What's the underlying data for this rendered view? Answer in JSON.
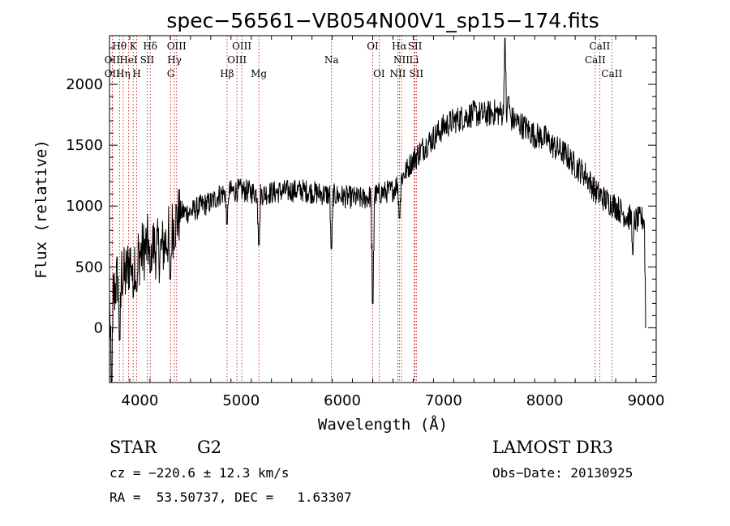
{
  "chart_data": {
    "type": "line",
    "title": "spec−56561−VB054N00V1_sp15−174.fits",
    "xlabel": "Wavelength (Å)",
    "ylabel": "Flux (relative)",
    "xlim": [
      3700,
      9100
    ],
    "ylim": [
      -450,
      2400
    ],
    "xticks": [
      4000,
      5000,
      6000,
      7000,
      8000,
      9000
    ],
    "yticks": [
      0,
      500,
      1000,
      1500,
      2000
    ],
    "grid": false,
    "line_color": "#000000",
    "marker_color": "#c00000",
    "spectrum_anchors": [
      {
        "x": 3700,
        "y": 200
      },
      {
        "x": 3750,
        "y": 300
      },
      {
        "x": 3800,
        "y": 500
      },
      {
        "x": 3850,
        "y": 400
      },
      {
        "x": 3900,
        "y": 550
      },
      {
        "x": 4000,
        "y": 600
      },
      {
        "x": 4100,
        "y": 700
      },
      {
        "x": 4200,
        "y": 620
      },
      {
        "x": 4300,
        "y": 780
      },
      {
        "x": 4400,
        "y": 950
      },
      {
        "x": 4500,
        "y": 950
      },
      {
        "x": 4600,
        "y": 1000
      },
      {
        "x": 4700,
        "y": 1030
      },
      {
        "x": 4800,
        "y": 1100
      },
      {
        "x": 4900,
        "y": 1120
      },
      {
        "x": 5000,
        "y": 1130
      },
      {
        "x": 5200,
        "y": 1100
      },
      {
        "x": 5400,
        "y": 1120
      },
      {
        "x": 5600,
        "y": 1130
      },
      {
        "x": 5800,
        "y": 1100
      },
      {
        "x": 6000,
        "y": 1080
      },
      {
        "x": 6200,
        "y": 1060
      },
      {
        "x": 6400,
        "y": 1110
      },
      {
        "x": 6500,
        "y": 1130
      },
      {
        "x": 6600,
        "y": 1250
      },
      {
        "x": 6700,
        "y": 1380
      },
      {
        "x": 6800,
        "y": 1480
      },
      {
        "x": 6900,
        "y": 1560
      },
      {
        "x": 7000,
        "y": 1650
      },
      {
        "x": 7100,
        "y": 1700
      },
      {
        "x": 7200,
        "y": 1730
      },
      {
        "x": 7300,
        "y": 1760
      },
      {
        "x": 7400,
        "y": 1750
      },
      {
        "x": 7500,
        "y": 1770
      },
      {
        "x": 7600,
        "y": 1760
      },
      {
        "x": 7700,
        "y": 1700
      },
      {
        "x": 7800,
        "y": 1650
      },
      {
        "x": 7900,
        "y": 1580
      },
      {
        "x": 8000,
        "y": 1560
      },
      {
        "x": 8100,
        "y": 1480
      },
      {
        "x": 8200,
        "y": 1430
      },
      {
        "x": 8300,
        "y": 1330
      },
      {
        "x": 8400,
        "y": 1260
      },
      {
        "x": 8500,
        "y": 1120
      },
      {
        "x": 8600,
        "y": 1050
      },
      {
        "x": 8700,
        "y": 1000
      },
      {
        "x": 8800,
        "y": 920
      },
      {
        "x": 8900,
        "y": 880
      },
      {
        "x": 9000,
        "y": 900
      }
    ],
    "spectrum_features": [
      {
        "x": 3720,
        "y": -450
      },
      {
        "x": 3800,
        "y": -100
      },
      {
        "x": 3934,
        "y": 250
      },
      {
        "x": 3969,
        "y": 300
      },
      {
        "x": 4102,
        "y": 450
      },
      {
        "x": 4300,
        "y": 400
      },
      {
        "x": 4861,
        "y": 850
      },
      {
        "x": 5175,
        "y": 680
      },
      {
        "x": 5893,
        "y": 650
      },
      {
        "x": 6300,
        "y": 200
      },
      {
        "x": 6563,
        "y": 900
      },
      {
        "x": 7606,
        "y": 2380
      },
      {
        "x": 7640,
        "y": 1900
      },
      {
        "x": 8870,
        "y": 600
      },
      {
        "x": 9000,
        "y": 0
      }
    ],
    "noise_amplitude": {
      "blue": 260,
      "green": 95,
      "red": 110
    },
    "lines": [
      {
        "label": "Hθ",
        "x": 3798,
        "row": 1
      },
      {
        "label": "OII",
        "x": 3727,
        "row": 2
      },
      {
        "label": "OII",
        "x": 3727,
        "row": 3
      },
      {
        "label": "Hη",
        "x": 3835,
        "row": 3
      },
      {
        "label": "HeI",
        "x": 3889,
        "row": 2
      },
      {
        "label": "K",
        "x": 3934,
        "row": 1
      },
      {
        "label": "H",
        "x": 3969,
        "row": 3
      },
      {
        "label": "SII",
        "x": 4072,
        "row": 2
      },
      {
        "label": "Hδ",
        "x": 4102,
        "row": 1
      },
      {
        "label": "OIII",
        "x": 4363,
        "row": 1
      },
      {
        "label": "Hγ",
        "x": 4341,
        "row": 2
      },
      {
        "label": "G",
        "x": 4305,
        "row": 3
      },
      {
        "label": "Hβ",
        "x": 4861,
        "row": 3
      },
      {
        "label": "OIII",
        "x": 5007,
        "row": 1
      },
      {
        "label": "OIII",
        "x": 4959,
        "row": 2
      },
      {
        "label": "Mg",
        "x": 5175,
        "row": 3
      },
      {
        "label": "Na",
        "x": 5893,
        "row": 2
      },
      {
        "label": "OI",
        "x": 6300,
        "row": 1
      },
      {
        "label": "OI",
        "x": 6363,
        "row": 3
      },
      {
        "label": "Hα",
        "x": 6563,
        "row": 1
      },
      {
        "label": "NII",
        "x": 6584,
        "row": 2
      },
      {
        "label": "NII",
        "x": 6548,
        "row": 3
      },
      {
        "label": "SII",
        "x": 6717,
        "row": 1
      },
      {
        "label": "Li",
        "x": 6708,
        "row": 2
      },
      {
        "label": "SII",
        "x": 6731,
        "row": 3
      },
      {
        "label": "CaII",
        "x": 8542,
        "row": 1
      },
      {
        "label": "CaII",
        "x": 8498,
        "row": 2
      },
      {
        "label": "CaII",
        "x": 8662,
        "row": 3
      }
    ]
  },
  "info": {
    "object_type": "STAR",
    "subclass": "G2",
    "survey": "LAMOST DR3",
    "redshift": "cz = −220.6 ± 12.3 km/s",
    "obs_date": "Obs−Date: 20130925",
    "coords": "RA =  53.50737, DEC =   1.63307"
  }
}
